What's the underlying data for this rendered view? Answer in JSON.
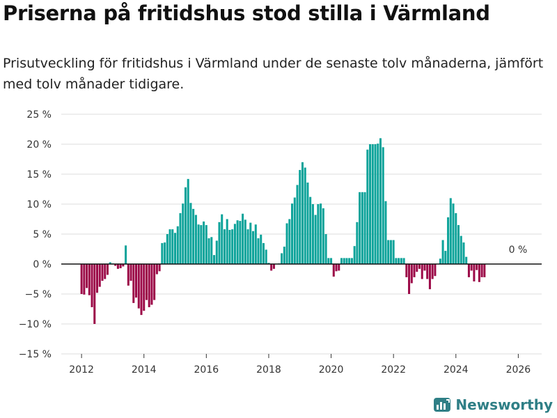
{
  "title": "Priserna på fritidshus stod stilla i Värmland",
  "subtitle": "Prisutveckling för fritidshus i Värmland under de senaste tolv månaderna, jämfört med tolv månader tidigare.",
  "brand": "Newsworthy",
  "colors": {
    "positive": "#0da39a",
    "negative": "#9c0a48",
    "zero_line": "#111111",
    "grid": "#dcdcdc",
    "brand": "#2f7f86"
  },
  "chart_data": {
    "type": "bar",
    "ylim": [
      -15,
      25
    ],
    "xlim": [
      2011.35,
      2026.75
    ],
    "yticks": [
      -15,
      -10,
      -5,
      0,
      5,
      10,
      15,
      20,
      25
    ],
    "ytick_labels": [
      "−15 %",
      "−10 %",
      "−5 %",
      "0 %",
      "5 %",
      "10 %",
      "15 %",
      "20 %",
      "25 %"
    ],
    "xticks": [
      2012,
      2014,
      2016,
      2018,
      2020,
      2022,
      2024,
      2026
    ],
    "xtick_labels": [
      "2012",
      "2014",
      "2016",
      "2018",
      "2020",
      "2022",
      "2024",
      "2026"
    ],
    "annotation": {
      "label": "0 %",
      "value": 0
    },
    "series": [
      {
        "name": "Prisutveckling",
        "start": 2012.0,
        "step": 0.08333,
        "values": [
          -5.0,
          -5.1,
          -4.0,
          -5.2,
          -7.2,
          -10.0,
          -4.8,
          -3.8,
          -2.8,
          -2.5,
          -1.8,
          0.3,
          0.1,
          -0.3,
          -0.8,
          -0.7,
          -0.4,
          3.1,
          -3.6,
          -2.8,
          -6.5,
          -5.6,
          -7.4,
          -8.5,
          -7.8,
          -6.0,
          -7.2,
          -6.8,
          -6.0,
          -1.7,
          -1.2,
          3.5,
          3.6,
          5.0,
          5.8,
          5.8,
          5.2,
          6.3,
          8.5,
          10.1,
          12.8,
          14.2,
          10.2,
          9.2,
          8.2,
          6.6,
          6.5,
          7.1,
          6.5,
          4.3,
          4.5,
          1.5,
          3.9,
          7.0,
          8.3,
          5.8,
          7.5,
          5.7,
          5.8,
          6.7,
          7.3,
          7.2,
          8.4,
          7.4,
          5.8,
          6.9,
          5.5,
          6.6,
          4.3,
          4.9,
          3.5,
          2.4,
          0.2,
          -1.1,
          -0.8,
          0.0,
          0.1,
          1.8,
          2.9,
          6.8,
          7.5,
          10.1,
          11.1,
          13.2,
          15.7,
          17.0,
          16.1,
          13.6,
          11.2,
          10.0,
          8.2,
          10.0,
          10.1,
          9.3,
          5.0,
          1.0,
          1.0,
          -2.1,
          -1.2,
          -1.1,
          1.0,
          1.0,
          1.0,
          1.0,
          1.0,
          3.0,
          7.0,
          12.0,
          12.0,
          12.0,
          19.1,
          20.0,
          20.0,
          20.0,
          20.1,
          21.0,
          19.5,
          10.5,
          4.0,
          4.0,
          4.0,
          1.0,
          1.0,
          1.0,
          1.0,
          -2.2,
          -5.0,
          -3.2,
          -2.2,
          -1.3,
          -0.8,
          -2.5,
          -1.1,
          -2.5,
          -4.2,
          -2.5,
          -2.0,
          0.0,
          0.9,
          4.0,
          2.2,
          7.8,
          11.0,
          10.1,
          8.5,
          6.5,
          4.7,
          3.6,
          1.2,
          -2.2,
          -1.1,
          -2.9,
          -1.0,
          -3.0,
          -2.2,
          -2.2
        ]
      }
    ]
  }
}
